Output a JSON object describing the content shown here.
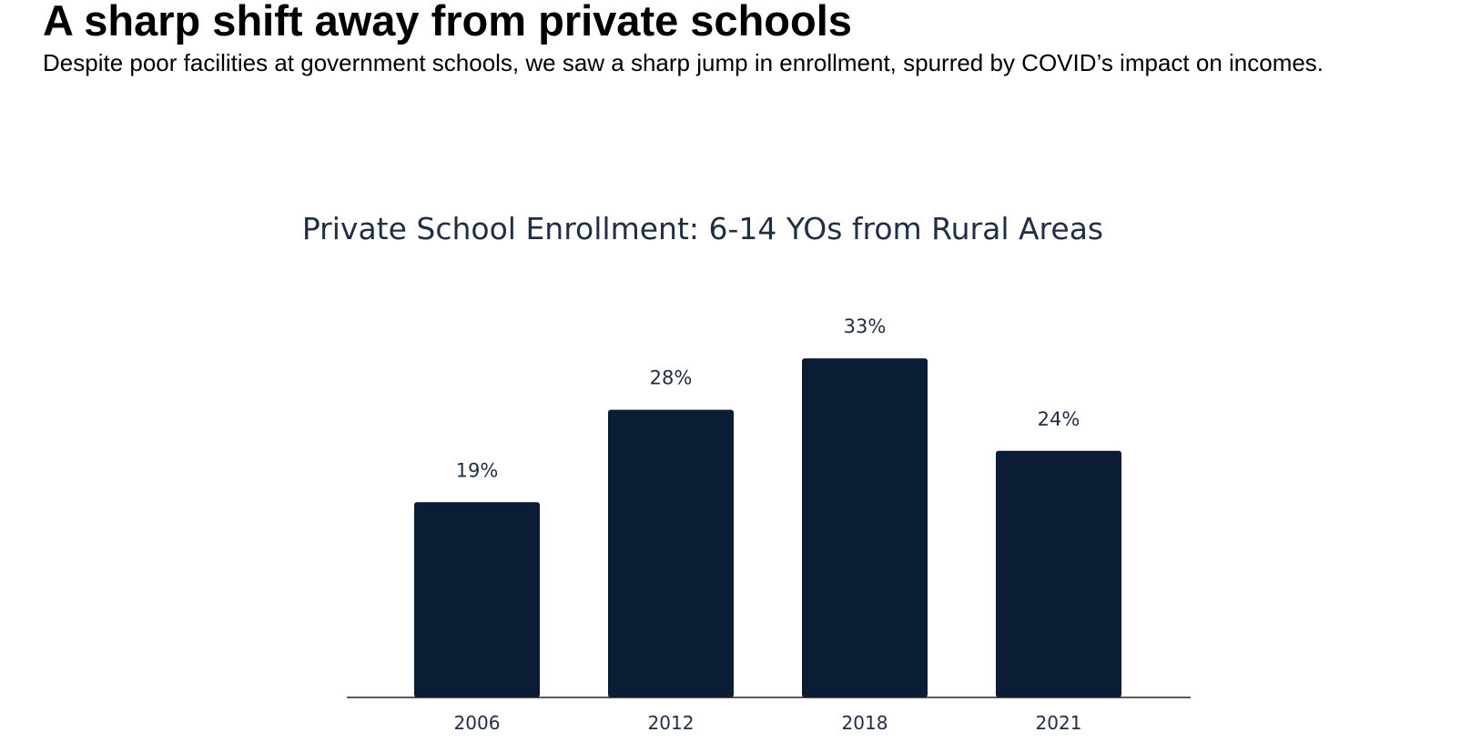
{
  "page": {
    "headline": "A sharp shift away from private schools",
    "subhead": "Despite poor facilities at government schools, we saw a sharp jump in enrollment, spurred by COVID’s impact on incomes."
  },
  "chart_data": {
    "type": "bar",
    "title": "Private School Enrollment: 6-14 YOs from Rural Areas",
    "categories": [
      "2006",
      "2012",
      "2018",
      "2021"
    ],
    "values": [
      19,
      28,
      33,
      24
    ],
    "data_labels": [
      "19%",
      "28%",
      "33%",
      "24%"
    ],
    "xlabel": "",
    "ylabel": "",
    "ylim": [
      0,
      40
    ],
    "grid": false,
    "legend": "none",
    "colors": {
      "bar": "#0a1d35",
      "text": "#1f2e45",
      "axis": "#222222"
    }
  }
}
